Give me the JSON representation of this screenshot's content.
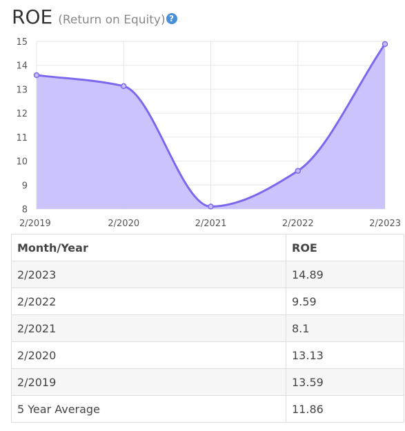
{
  "header": {
    "title": "ROE",
    "subtitle": "(Return on Equity)",
    "help_icon": "question-circle-icon"
  },
  "chart_data": {
    "type": "area",
    "x": [
      "2/2019",
      "2/2020",
      "2/2021",
      "2/2022",
      "2/2023"
    ],
    "series": [
      {
        "values": [
          13.59,
          13.13,
          8.1,
          9.59,
          14.89
        ]
      }
    ],
    "y_ticks": [
      8,
      9,
      10,
      11,
      12,
      13,
      14,
      15
    ],
    "ylim": [
      8,
      15
    ],
    "grid": true,
    "colors": {
      "line": "#7b68ee",
      "fill": "#c5bdfb",
      "grid": "#e6e6e6"
    }
  },
  "table": {
    "headers": [
      "Month/Year",
      "ROE"
    ],
    "rows": [
      [
        "2/2023",
        "14.89"
      ],
      [
        "2/2022",
        "9.59"
      ],
      [
        "2/2021",
        "8.1"
      ],
      [
        "2/2020",
        "13.13"
      ],
      [
        "2/2019",
        "13.59"
      ],
      [
        "5 Year Average",
        "11.86"
      ]
    ]
  }
}
